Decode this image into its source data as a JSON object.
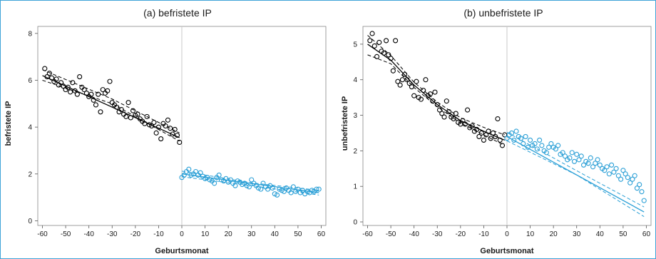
{
  "chart_data": [
    {
      "type": "scatter",
      "title": "(a) befristete IP",
      "xlabel": "Geburtsmonat",
      "ylabel": "befristete IP",
      "xlim": [
        -62,
        62
      ],
      "ylim": [
        -0.2,
        8.3
      ],
      "xticks": [
        -60,
        -50,
        -40,
        -30,
        -20,
        -10,
        0,
        10,
        20,
        30,
        40,
        50,
        60
      ],
      "yticks": [
        0,
        2,
        4,
        6,
        8
      ],
      "cutoff": 0,
      "grid": false,
      "series": [
        {
          "color": "#000000",
          "x": [
            -59,
            -58,
            -57,
            -56,
            -55,
            -54,
            -53,
            -52,
            -51,
            -50,
            -49,
            -48,
            -47,
            -46,
            -45,
            -44,
            -43,
            -42,
            -41,
            -40,
            -39,
            -38,
            -37,
            -36,
            -35,
            -34,
            -33,
            -32,
            -31,
            -30,
            -29,
            -28,
            -27,
            -26,
            -25,
            -24,
            -23,
            -22,
            -21,
            -20,
            -19,
            -18,
            -17,
            -16,
            -15,
            -14,
            -13,
            -12,
            -11,
            -10,
            -9,
            -8,
            -7,
            -6,
            -5,
            -4,
            -3,
            -2,
            -1
          ],
          "y": [
            6.5,
            6.15,
            6.3,
            6.1,
            5.95,
            6.05,
            5.8,
            5.9,
            5.75,
            5.6,
            5.7,
            5.5,
            5.9,
            5.55,
            5.4,
            6.15,
            5.7,
            5.6,
            5.45,
            5.3,
            5.4,
            5.15,
            4.95,
            5.4,
            4.65,
            5.6,
            5.45,
            5.55,
            5.95,
            5.05,
            4.95,
            4.85,
            4.65,
            4.75,
            4.55,
            4.45,
            5.05,
            4.4,
            4.7,
            4.5,
            4.55,
            4.35,
            4.25,
            4.15,
            4.45,
            4.1,
            4.05,
            4.2,
            3.75,
            4.0,
            3.5,
            4.15,
            4.05,
            4.3,
            3.95,
            3.7,
            3.9,
            3.65,
            3.35
          ],
          "fit": {
            "x": [
              -60,
              -1
            ],
            "y": [
              6.2,
              3.55
            ]
          },
          "ci_lower": {
            "x": [
              -60,
              -30,
              -1
            ],
            "y": [
              6.0,
              5.0,
              3.4
            ]
          },
          "ci_upper": {
            "x": [
              -60,
              -30,
              -1
            ],
            "y": [
              6.45,
              5.2,
              3.75
            ]
          }
        },
        {
          "color": "#2a9fd6",
          "x": [
            0,
            1,
            2,
            3,
            4,
            5,
            6,
            7,
            8,
            9,
            10,
            11,
            12,
            13,
            14,
            15,
            16,
            17,
            18,
            19,
            20,
            21,
            22,
            23,
            24,
            25,
            26,
            27,
            28,
            29,
            30,
            31,
            32,
            33,
            34,
            35,
            36,
            37,
            38,
            39,
            40,
            41,
            42,
            43,
            44,
            45,
            46,
            47,
            48,
            49,
            50,
            51,
            52,
            53,
            54,
            55,
            56,
            57,
            58,
            59
          ],
          "y": [
            1.85,
            1.95,
            2.1,
            2.2,
            1.95,
            2.0,
            2.1,
            1.95,
            2.05,
            1.9,
            1.8,
            1.85,
            1.75,
            1.7,
            1.6,
            1.85,
            1.95,
            1.75,
            1.7,
            1.8,
            1.65,
            1.75,
            1.6,
            1.5,
            1.7,
            1.65,
            1.55,
            1.6,
            1.5,
            1.45,
            1.75,
            1.6,
            1.5,
            1.4,
            1.35,
            1.6,
            1.45,
            1.35,
            1.5,
            1.4,
            1.15,
            1.1,
            1.35,
            1.3,
            1.25,
            1.4,
            1.3,
            1.2,
            1.45,
            1.25,
            1.35,
            1.2,
            1.3,
            1.15,
            1.25,
            1.2,
            1.3,
            1.25,
            1.35,
            1.35
          ],
          "fit": {
            "x": [
              0,
              59
            ],
            "y": [
              2.0,
              1.2
            ]
          },
          "ci_lower": {
            "x": [
              0,
              30,
              59
            ],
            "y": [
              1.88,
              1.5,
              1.1
            ]
          },
          "ci_upper": {
            "x": [
              0,
              30,
              59
            ],
            "y": [
              2.12,
              1.62,
              1.3
            ]
          }
        }
      ]
    },
    {
      "type": "scatter",
      "title": "(b) unbefristete IP",
      "xlabel": "Geburtsmonat",
      "ylabel": "unbefristete IP",
      "xlim": [
        -62,
        62
      ],
      "ylim": [
        -0.1,
        5.5
      ],
      "xticks": [
        -60,
        -50,
        -40,
        -30,
        -20,
        -10,
        0,
        10,
        20,
        30,
        40,
        50,
        60
      ],
      "yticks": [
        0,
        1,
        2,
        3,
        4,
        5
      ],
      "cutoff": 0,
      "grid": false,
      "series": [
        {
          "color": "#000000",
          "x": [
            -59,
            -58,
            -57,
            -56,
            -55,
            -54,
            -53,
            -52,
            -51,
            -50,
            -49,
            -48,
            -47,
            -46,
            -45,
            -44,
            -43,
            -42,
            -41,
            -40,
            -39,
            -38,
            -37,
            -36,
            -35,
            -34,
            -33,
            -32,
            -31,
            -30,
            -29,
            -28,
            -27,
            -26,
            -25,
            -24,
            -23,
            -22,
            -21,
            -20,
            -19,
            -18,
            -17,
            -16,
            -15,
            -14,
            -13,
            -12,
            -11,
            -10,
            -9,
            -8,
            -7,
            -6,
            -5,
            -4,
            -3,
            -2,
            -1
          ],
          "y": [
            5.1,
            5.3,
            4.95,
            4.65,
            5.05,
            4.8,
            4.75,
            5.1,
            4.7,
            4.6,
            4.25,
            5.1,
            3.95,
            3.85,
            4.0,
            4.15,
            4.0,
            3.9,
            3.8,
            3.55,
            3.95,
            3.5,
            3.45,
            3.7,
            4.0,
            3.55,
            3.6,
            3.4,
            3.65,
            3.3,
            3.15,
            3.05,
            2.95,
            3.4,
            3.1,
            2.95,
            2.9,
            3.05,
            2.8,
            2.75,
            2.85,
            2.75,
            3.15,
            2.65,
            2.7,
            2.55,
            2.6,
            2.4,
            2.5,
            2.3,
            2.45,
            2.55,
            2.35,
            2.5,
            2.4,
            2.9,
            2.3,
            2.15,
            2.45
          ],
          "fit": {
            "x": [
              -60,
              -50,
              -40,
              -30,
              -20,
              -10,
              -1
            ],
            "y": [
              5.0,
              4.55,
              3.85,
              3.3,
              2.85,
              2.55,
              2.3
            ]
          },
          "ci_lower": {
            "x": [
              -60,
              -50,
              -40,
              -30,
              -20,
              -10,
              -1
            ],
            "y": [
              4.7,
              4.45,
              3.78,
              3.24,
              2.78,
              2.45,
              2.15
            ]
          },
          "ci_upper": {
            "x": [
              -60,
              -50,
              -40,
              -30,
              -20,
              -10,
              -1
            ],
            "y": [
              5.25,
              4.68,
              3.93,
              3.37,
              2.93,
              2.66,
              2.45
            ]
          }
        },
        {
          "color": "#2a9fd6",
          "x": [
            0,
            1,
            2,
            3,
            4,
            5,
            6,
            7,
            8,
            9,
            10,
            11,
            12,
            13,
            14,
            15,
            16,
            17,
            18,
            19,
            20,
            21,
            22,
            23,
            24,
            25,
            26,
            27,
            28,
            29,
            30,
            31,
            32,
            33,
            34,
            35,
            36,
            37,
            38,
            39,
            40,
            41,
            42,
            43,
            44,
            45,
            46,
            47,
            48,
            49,
            50,
            51,
            52,
            53,
            54,
            55,
            56,
            57,
            58,
            59
          ],
          "y": [
            2.35,
            2.45,
            2.5,
            2.3,
            2.55,
            2.4,
            2.35,
            2.2,
            2.4,
            2.1,
            2.3,
            2.15,
            2.2,
            2.05,
            2.3,
            2.15,
            2.0,
            1.95,
            2.1,
            2.2,
            2.1,
            2.05,
            2.15,
            1.9,
            1.95,
            1.85,
            1.75,
            1.8,
            1.95,
            1.7,
            1.9,
            1.75,
            1.85,
            1.6,
            1.7,
            1.65,
            1.8,
            1.55,
            1.65,
            1.75,
            1.6,
            1.5,
            1.45,
            1.55,
            1.35,
            1.6,
            1.4,
            1.5,
            1.3,
            1.2,
            1.45,
            1.35,
            1.25,
            1.1,
            1.2,
            1.3,
            0.95,
            1.05,
            0.85,
            0.6
          ],
          "fit": {
            "x": [
              0,
              59
            ],
            "y": [
              2.4,
              0.28
            ]
          },
          "ci_lower": {
            "x": [
              0,
              30,
              59
            ],
            "y": [
              2.28,
              1.32,
              0.15
            ]
          },
          "ci_upper": {
            "x": [
              0,
              30,
              59
            ],
            "y": [
              2.52,
              1.44,
              0.42
            ]
          }
        }
      ]
    }
  ]
}
